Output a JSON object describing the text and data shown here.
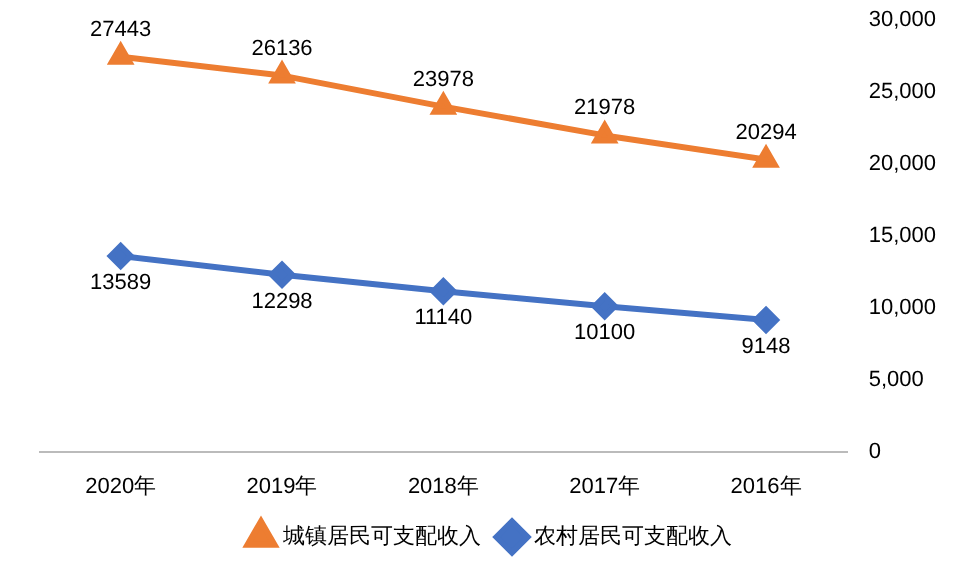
{
  "chart_data": {
    "type": "line",
    "categories": [
      "2020年",
      "2019年",
      "2018年",
      "2017年",
      "2016年"
    ],
    "series": [
      {
        "name": "城镇居民可支配收入",
        "color": "#ed7d31",
        "marker": "triangle",
        "values": [
          27443,
          26136,
          23978,
          21978,
          20294
        ]
      },
      {
        "name": "农村居民可支配收入",
        "color": "#4472c4",
        "marker": "diamond",
        "values": [
          13589,
          12298,
          11140,
          10100,
          9148
        ]
      }
    ],
    "ylim": [
      0,
      30000
    ],
    "yticks": [
      {
        "value": 0,
        "label": "0"
      },
      {
        "value": 5000,
        "label": "5,000"
      },
      {
        "value": 10000,
        "label": "10,000"
      },
      {
        "value": 15000,
        "label": "15,000"
      },
      {
        "value": 20000,
        "label": "20,000"
      },
      {
        "value": 25000,
        "label": "25,000"
      },
      {
        "value": 30000,
        "label": "30,000"
      }
    ],
    "grid": false,
    "legend": "bottom",
    "data_labels": true
  }
}
